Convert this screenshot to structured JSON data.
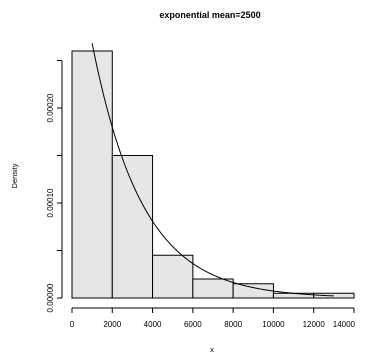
{
  "chart_data": {
    "type": "bar",
    "title": "exponential mean=2500",
    "xlabel": "x",
    "ylabel": "Density",
    "bins": [
      {
        "start": 0,
        "end": 2000,
        "density": 0.00026
      },
      {
        "start": 2000,
        "end": 4000,
        "density": 0.00015
      },
      {
        "start": 4000,
        "end": 6000,
        "density": 4.5e-05
      },
      {
        "start": 6000,
        "end": 8000,
        "density": 2e-05
      },
      {
        "start": 8000,
        "end": 10000,
        "density": 1.5e-05
      },
      {
        "start": 10000,
        "end": 12000,
        "density": 5e-06
      },
      {
        "start": 12000,
        "end": 14000,
        "density": 5e-06
      }
    ],
    "x_ticks": [
      0,
      2000,
      4000,
      6000,
      8000,
      10000,
      12000,
      14000
    ],
    "x_tick_labels": [
      "0",
      "2000",
      "4000",
      "6000",
      "8000",
      "10000",
      "12000",
      "14000"
    ],
    "y_ticks": [
      0,
      5e-05,
      0.0001,
      0.00015,
      0.0002,
      0.00025
    ],
    "y_tick_labels": [
      "0.00000",
      "0.00010",
      "0.00020"
    ],
    "y_labeled_ticks": [
      0,
      0.0001,
      0.0002
    ],
    "xlim": [
      0,
      14000
    ],
    "ylim": [
      0,
      0.00026
    ],
    "overlay_curve": {
      "type": "exponential_density",
      "mean": 2500,
      "x_range": [
        1000,
        13000
      ]
    },
    "grid": false
  }
}
